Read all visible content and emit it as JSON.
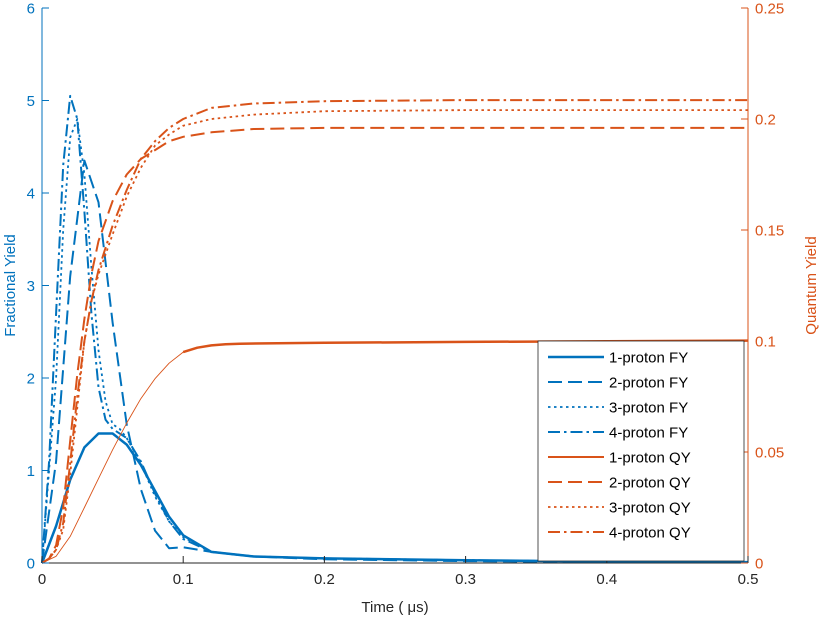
{
  "chart_data": {
    "type": "line",
    "xlabel": "Time ( μs)",
    "ylabel_left": "Fractional Yield",
    "ylabel_right": "Quantum Yield",
    "xlim": [
      0,
      0.5
    ],
    "ylim_left": [
      0,
      6
    ],
    "ylim_right": [
      0,
      0.25
    ],
    "x_ticks": [
      0,
      0.1,
      0.2,
      0.3,
      0.4,
      0.5
    ],
    "x_tick_labels": [
      "0",
      "0.1",
      "0.2",
      "0.3",
      "0.4",
      "0.5"
    ],
    "y_left_ticks": [
      0,
      1,
      2,
      3,
      4,
      5,
      6
    ],
    "y_left_tick_labels": [
      "0",
      "1",
      "2",
      "3",
      "4",
      "5",
      "6"
    ],
    "y_right_ticks": [
      0,
      0.05,
      0.1,
      0.15,
      0.2,
      0.25
    ],
    "y_right_tick_labels": [
      "0",
      "0.05",
      "0.1",
      "0.15",
      "0.2",
      "0.25"
    ],
    "grid": false,
    "legend_position": "lower-right",
    "colors": {
      "left": "#0072BD",
      "right": "#D95319"
    },
    "series": [
      {
        "name": "1-proton FY",
        "axis": "left",
        "style": "solid",
        "width": 2.5,
        "x": [
          0,
          0.01,
          0.02,
          0.03,
          0.04,
          0.05,
          0.06,
          0.07,
          0.08,
          0.09,
          0.1,
          0.12,
          0.15,
          0.2,
          0.3,
          0.4,
          0.5
        ],
        "y": [
          0,
          0.4,
          0.9,
          1.25,
          1.4,
          1.4,
          1.28,
          1.06,
          0.78,
          0.5,
          0.3,
          0.12,
          0.07,
          0.05,
          0.03,
          0.015,
          0.01
        ]
      },
      {
        "name": "2-proton FY",
        "axis": "left",
        "style": "dashed",
        "width": 2,
        "x": [
          0,
          0.01,
          0.02,
          0.03,
          0.04,
          0.05,
          0.06,
          0.07,
          0.08,
          0.09,
          0.1,
          0.12,
          0.15,
          0.2,
          0.3,
          0.4,
          0.5
        ],
        "y": [
          0,
          1.1,
          3.1,
          4.35,
          3.9,
          2.6,
          1.5,
          0.8,
          0.35,
          0.16,
          0.17,
          0.12,
          0.07,
          0.04,
          0.02,
          0.01,
          0.005
        ]
      },
      {
        "name": "3-proton FY",
        "axis": "left",
        "style": "dotted",
        "width": 1.8,
        "x": [
          0,
          0.01,
          0.015,
          0.02,
          0.025,
          0.03,
          0.035,
          0.04,
          0.045,
          0.05,
          0.055,
          0.06,
          0.07,
          0.08,
          0.09,
          0.1,
          0.12,
          0.15,
          0.2,
          0.3,
          0.4,
          0.5
        ],
        "y": [
          0,
          2.0,
          3.6,
          4.6,
          4.8,
          4.2,
          3.2,
          2.3,
          1.75,
          1.5,
          1.45,
          1.35,
          1.08,
          0.72,
          0.45,
          0.28,
          0.12,
          0.07,
          0.05,
          0.03,
          0.015,
          0.01
        ]
      },
      {
        "name": "4-proton FY",
        "axis": "left",
        "style": "dashdot",
        "width": 2,
        "x": [
          0,
          0.005,
          0.01,
          0.015,
          0.02,
          0.025,
          0.03,
          0.035,
          0.04,
          0.045,
          0.05,
          0.06,
          0.07,
          0.08,
          0.09,
          0.1,
          0.12,
          0.15,
          0.2,
          0.3,
          0.4,
          0.5
        ],
        "y": [
          0,
          1.1,
          2.7,
          4.3,
          5.05,
          4.8,
          3.8,
          2.7,
          1.9,
          1.55,
          1.45,
          1.35,
          1.1,
          0.75,
          0.45,
          0.26,
          0.12,
          0.07,
          0.05,
          0.03,
          0.015,
          0.01
        ]
      },
      {
        "name": "1-proton QY",
        "axis": "right",
        "style": "solid",
        "width": 0.9,
        "thick_from_x": 0.1,
        "thick_width": 2.5,
        "x": [
          0,
          0.01,
          0.02,
          0.03,
          0.04,
          0.05,
          0.06,
          0.07,
          0.08,
          0.09,
          0.1,
          0.11,
          0.12,
          0.13,
          0.14,
          0.2,
          0.3,
          0.4,
          0.5
        ],
        "y": [
          0,
          0.003,
          0.012,
          0.025,
          0.038,
          0.051,
          0.063,
          0.074,
          0.083,
          0.09,
          0.095,
          0.097,
          0.098,
          0.0985,
          0.0988,
          0.0992,
          0.0996,
          0.0999,
          0.1002
        ]
      },
      {
        "name": "2-proton QY",
        "axis": "right",
        "style": "dashed",
        "width": 2,
        "x": [
          0,
          0.005,
          0.01,
          0.015,
          0.02,
          0.025,
          0.03,
          0.035,
          0.04,
          0.05,
          0.06,
          0.07,
          0.08,
          0.09,
          0.1,
          0.12,
          0.15,
          0.2,
          0.3,
          0.4,
          0.5
        ],
        "y": [
          0,
          0.002,
          0.008,
          0.025,
          0.055,
          0.085,
          0.11,
          0.13,
          0.145,
          0.163,
          0.175,
          0.182,
          0.186,
          0.19,
          0.192,
          0.194,
          0.1955,
          0.196,
          0.196,
          0.196,
          0.196
        ]
      },
      {
        "name": "3-proton QY",
        "axis": "right",
        "style": "dotted",
        "width": 1.8,
        "x": [
          0,
          0.005,
          0.01,
          0.015,
          0.02,
          0.025,
          0.03,
          0.035,
          0.04,
          0.05,
          0.06,
          0.07,
          0.08,
          0.09,
          0.1,
          0.12,
          0.15,
          0.2,
          0.3,
          0.4,
          0.5
        ],
        "y": [
          0,
          0.002,
          0.006,
          0.015,
          0.04,
          0.07,
          0.1,
          0.118,
          0.13,
          0.148,
          0.165,
          0.178,
          0.188,
          0.193,
          0.197,
          0.2,
          0.202,
          0.2035,
          0.204,
          0.204,
          0.204
        ]
      },
      {
        "name": "4-proton QY",
        "axis": "right",
        "style": "dashdot",
        "width": 2,
        "x": [
          0,
          0.005,
          0.01,
          0.015,
          0.02,
          0.025,
          0.03,
          0.035,
          0.04,
          0.05,
          0.06,
          0.07,
          0.08,
          0.09,
          0.1,
          0.12,
          0.15,
          0.2,
          0.3,
          0.4,
          0.5
        ],
        "y": [
          0,
          0.002,
          0.006,
          0.018,
          0.045,
          0.075,
          0.1,
          0.118,
          0.132,
          0.152,
          0.168,
          0.182,
          0.19,
          0.196,
          0.2,
          0.205,
          0.207,
          0.208,
          0.2085,
          0.2085,
          0.2085
        ]
      }
    ]
  }
}
